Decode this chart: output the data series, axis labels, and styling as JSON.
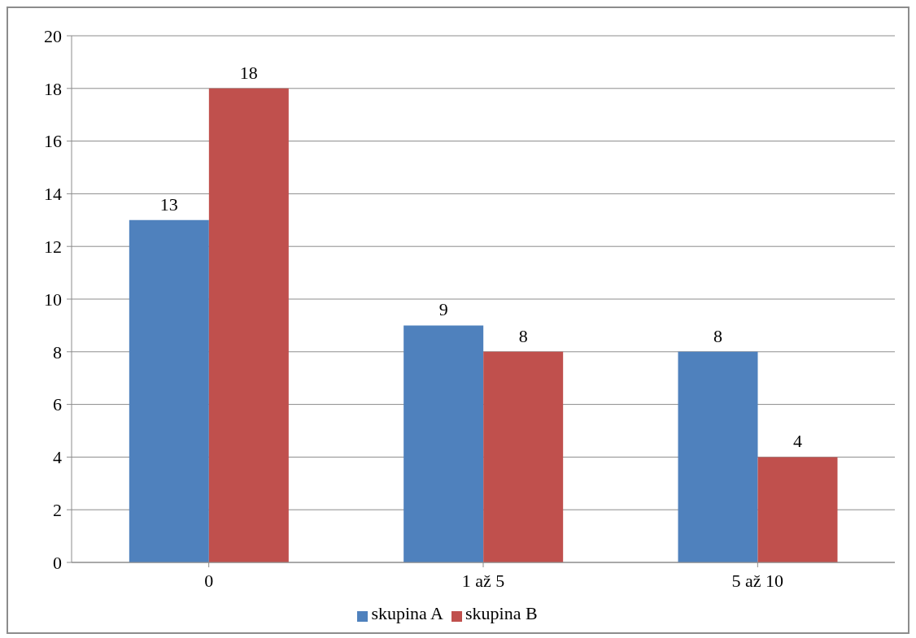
{
  "chart_data": {
    "type": "bar",
    "categories": [
      "0",
      "1 až 5",
      "5 až 10"
    ],
    "series": [
      {
        "name": "skupina A",
        "color": "#4f81bd",
        "values": [
          13,
          9,
          8
        ]
      },
      {
        "name": "skupina B",
        "color": "#c0504d",
        "values": [
          18,
          8,
          4
        ]
      }
    ],
    "ylim": [
      0,
      20
    ],
    "yticks": [
      0,
      2,
      4,
      6,
      8,
      10,
      12,
      14,
      16,
      18,
      20
    ],
    "grid": "y",
    "legend": "bottom",
    "data_labels": true
  }
}
